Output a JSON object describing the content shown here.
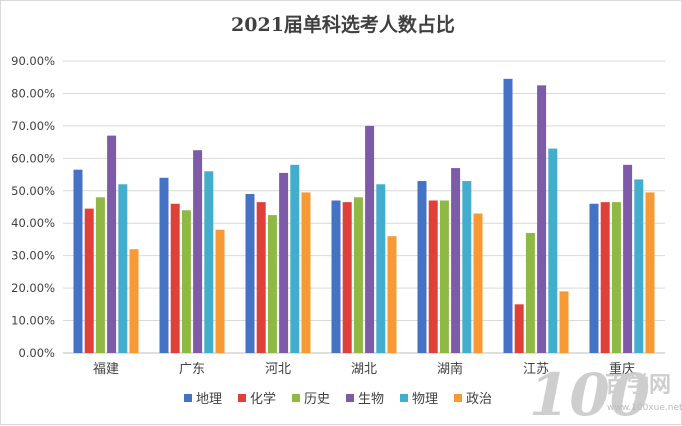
{
  "chart_data": {
    "type": "bar",
    "title": "2021届单科选考人数占比",
    "categories": [
      "福建",
      "广东",
      "河北",
      "湖北",
      "湖南",
      "江苏",
      "重庆"
    ],
    "ylim": [
      0,
      90
    ],
    "yticks": [
      "0.00%",
      "10.00%",
      "20.00%",
      "30.00%",
      "40.00%",
      "50.00%",
      "60.00%",
      "70.00%",
      "80.00%",
      "90.00%"
    ],
    "grid": true,
    "legend_position": "bottom",
    "series": [
      {
        "name": "地理",
        "color": "#4472C4",
        "values": [
          56.5,
          54.0,
          49.0,
          47.0,
          53.0,
          84.5,
          46.0
        ]
      },
      {
        "name": "化学",
        "color": "#E0403A",
        "values": [
          44.5,
          46.0,
          46.5,
          46.5,
          47.0,
          15.0,
          46.5
        ]
      },
      {
        "name": "历史",
        "color": "#8DB944",
        "values": [
          48.0,
          44.0,
          42.5,
          48.0,
          47.0,
          37.0,
          46.5
        ]
      },
      {
        "name": "生物",
        "color": "#7E5BA8",
        "values": [
          67.0,
          62.5,
          55.5,
          70.0,
          57.0,
          82.5,
          58.0
        ]
      },
      {
        "name": "物理",
        "color": "#42ADCD",
        "values": [
          52.0,
          56.0,
          58.0,
          52.0,
          53.0,
          63.0,
          53.5
        ]
      },
      {
        "name": "政治",
        "color": "#F79A36",
        "values": [
          32.0,
          38.0,
          49.5,
          36.0,
          43.0,
          19.0,
          49.5
        ]
      }
    ]
  },
  "watermark": {
    "glyph": "100",
    "text": "百学网",
    "url": "www.100xue.net"
  }
}
